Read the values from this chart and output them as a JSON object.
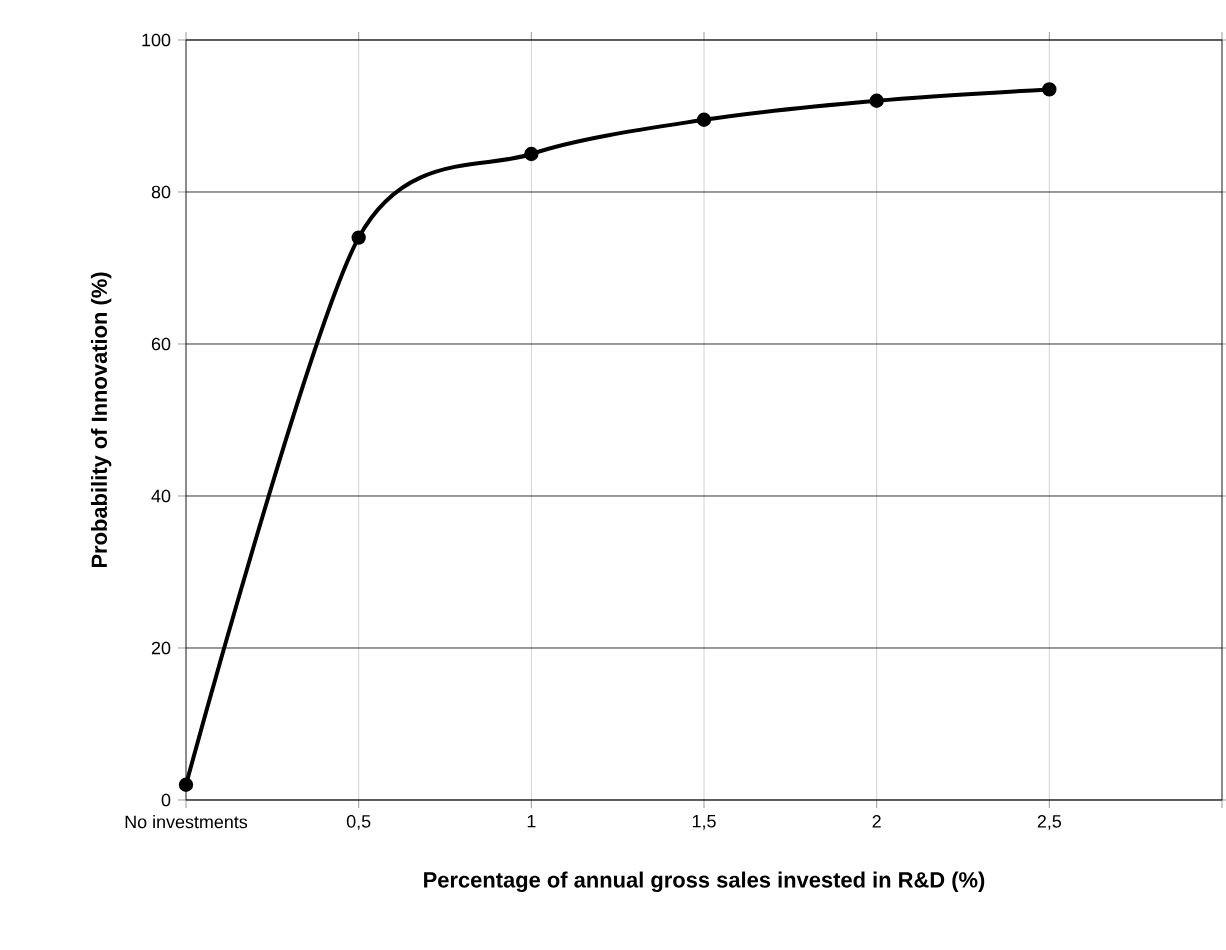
{
  "chart_data": {
    "type": "line",
    "xlabel": "Percentage of annual gross sales invested in R&D (%)",
    "ylabel": "Probability of Innovation (%)",
    "categories": [
      "No investments",
      "0,5",
      "1",
      "1,5",
      "2",
      "2,5",
      null
    ],
    "values": [
      2,
      74,
      85,
      89.5,
      92,
      93.5,
      null
    ],
    "color": "#000000",
    "ylim": [
      0,
      100
    ],
    "yticks": [
      0,
      20,
      40,
      60,
      80,
      100
    ],
    "grid": true,
    "marker": "circle",
    "line_style": "solid"
  }
}
